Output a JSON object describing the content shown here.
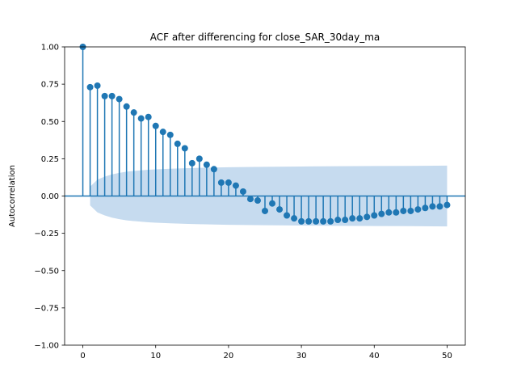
{
  "chart_data": {
    "type": "stem",
    "title": "ACF after differencing for close_SAR_30day_ma",
    "xlabel": "",
    "ylabel": "Autocorrelation",
    "xlim": [
      -2.5,
      52.5
    ],
    "ylim": [
      -1.0,
      1.0
    ],
    "x_ticks": [
      0,
      10,
      20,
      30,
      40,
      50
    ],
    "x_tick_labels": [
      "0",
      "10",
      "20",
      "30",
      "40",
      "50"
    ],
    "y_ticks": [
      -1.0,
      -0.75,
      -0.5,
      -0.25,
      0.0,
      0.25,
      0.5,
      0.75,
      1.0
    ],
    "y_tick_labels": [
      "−1.00",
      "−0.75",
      "−0.50",
      "−0.25",
      "0.00",
      "0.25",
      "0.50",
      "0.75",
      "1.00"
    ],
    "grid": false,
    "colors": {
      "stem": "#1f77b4",
      "band": "#c6dbef",
      "axis": "#000000"
    },
    "lags": [
      0,
      1,
      2,
      3,
      4,
      5,
      6,
      7,
      8,
      9,
      10,
      11,
      12,
      13,
      14,
      15,
      16,
      17,
      18,
      19,
      20,
      21,
      22,
      23,
      24,
      25,
      26,
      27,
      28,
      29,
      30,
      31,
      32,
      33,
      34,
      35,
      36,
      37,
      38,
      39,
      40,
      41,
      42,
      43,
      44,
      45,
      46,
      47,
      48,
      49,
      50
    ],
    "acf": [
      1.0,
      0.73,
      0.74,
      0.67,
      0.67,
      0.65,
      0.6,
      0.56,
      0.52,
      0.53,
      0.47,
      0.43,
      0.41,
      0.35,
      0.32,
      0.22,
      0.25,
      0.21,
      0.18,
      0.09,
      0.09,
      0.07,
      0.03,
      -0.02,
      -0.03,
      -0.1,
      -0.05,
      -0.09,
      -0.13,
      -0.15,
      -0.17,
      -0.17,
      -0.17,
      -0.17,
      -0.17,
      -0.16,
      -0.16,
      -0.15,
      -0.15,
      -0.14,
      -0.13,
      -0.12,
      -0.11,
      -0.11,
      -0.1,
      -0.1,
      -0.09,
      -0.08,
      -0.07,
      -0.07,
      -0.06
    ],
    "confidence_band": {
      "lags": [
        1,
        2,
        3,
        4,
        5,
        6,
        7,
        8,
        9,
        10,
        12,
        14,
        16,
        18,
        20,
        25,
        30,
        35,
        40,
        45,
        50
      ],
      "upper": [
        0.063,
        0.11,
        0.13,
        0.145,
        0.155,
        0.163,
        0.168,
        0.172,
        0.176,
        0.179,
        0.183,
        0.186,
        0.189,
        0.191,
        0.193,
        0.196,
        0.198,
        0.2,
        0.201,
        0.202,
        0.204
      ]
    }
  }
}
